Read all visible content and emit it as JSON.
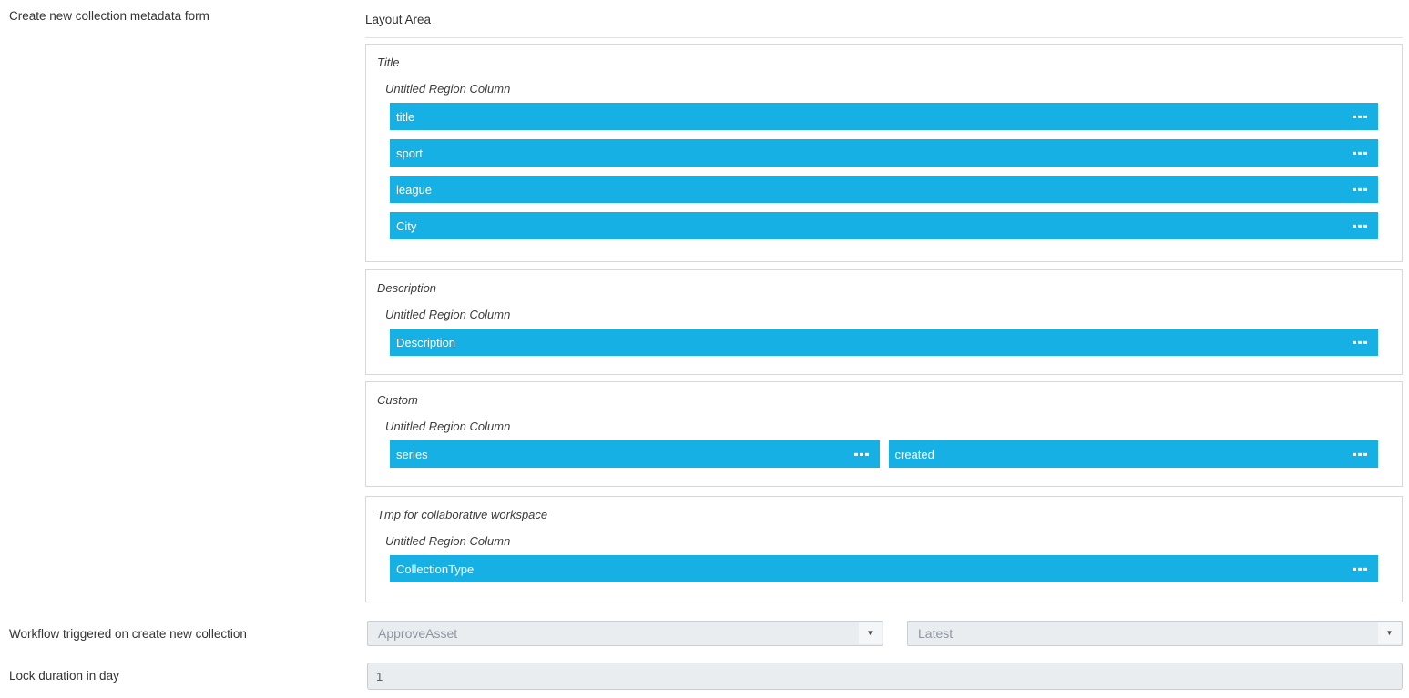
{
  "colors": {
    "bar": "#17b0e4",
    "bar_text": "#ffffff",
    "box_border": "#d8d8d8",
    "header_border": "#e2e2e2",
    "dropdown_bg": "#e9edf0",
    "dropdown_border": "#c8ced5",
    "dropdown_text": "#8d96a0",
    "dropdown_button_bg": "#f5f6f7",
    "input_bg": "#e9edf0",
    "input_border": "#c5ccd3",
    "input_text": "#566069",
    "label_text": "#333333"
  },
  "labels": {
    "form": "Create new collection metadata form",
    "workflow": "Workflow triggered on create new collection",
    "lock": "Lock duration in day"
  },
  "layout_area": {
    "title": "Layout Area",
    "sections": [
      {
        "title": "Title",
        "region_title": "Untitled Region Column",
        "rows": [
          [
            "title"
          ],
          [
            "sport"
          ],
          [
            "league"
          ],
          [
            "City"
          ]
        ]
      },
      {
        "title": "Description",
        "region_title": "Untitled Region Column",
        "rows": [
          [
            "Description"
          ]
        ]
      },
      {
        "title": "Custom",
        "region_title": "Untitled Region Column",
        "rows": [
          [
            "series",
            "created"
          ]
        ]
      },
      {
        "title": "Tmp for collaborative workspace",
        "region_title": "Untitled Region Column",
        "rows": [
          [
            "CollectionType"
          ]
        ]
      }
    ]
  },
  "workflow": {
    "selected": "ApproveAsset",
    "version_selected": "Latest",
    "arrow_icon": "▼"
  },
  "lock": {
    "value": "1"
  }
}
